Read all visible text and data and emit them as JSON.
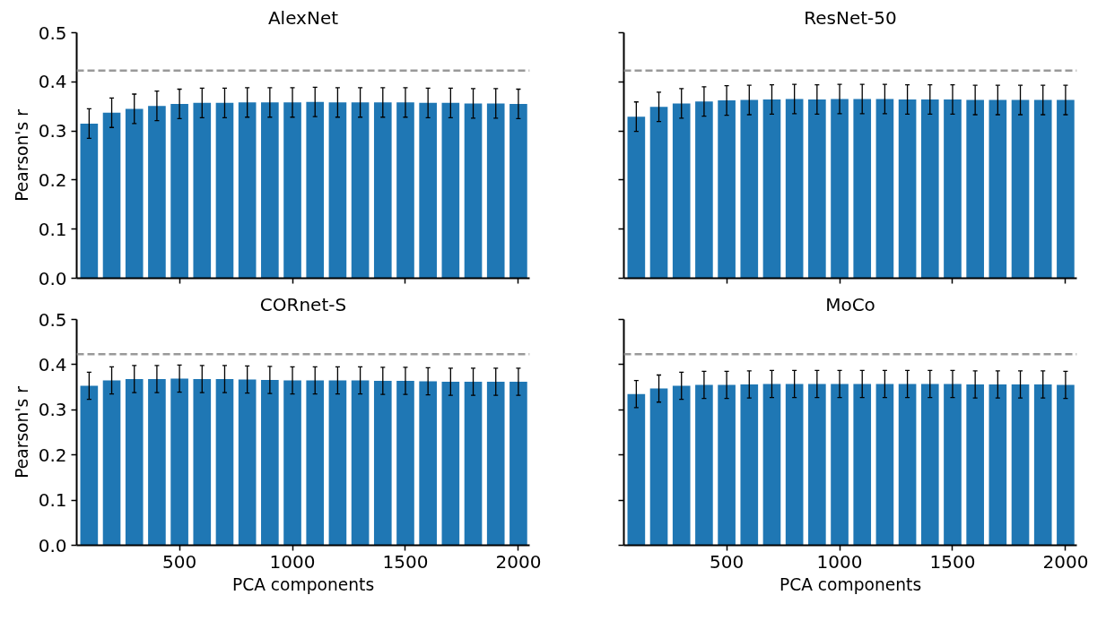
{
  "chart_data": [
    {
      "type": "bar",
      "title": "AlexNet",
      "ylabel": "Pearson's r",
      "color": "#1f77b4",
      "x": [
        100,
        200,
        300,
        400,
        500,
        600,
        700,
        800,
        900,
        1000,
        1100,
        1200,
        1300,
        1400,
        1500,
        1600,
        1700,
        1800,
        1900,
        2000
      ],
      "values": [
        0.315,
        0.337,
        0.345,
        0.351,
        0.355,
        0.357,
        0.357,
        0.358,
        0.358,
        0.358,
        0.359,
        0.358,
        0.358,
        0.358,
        0.358,
        0.357,
        0.357,
        0.356,
        0.356,
        0.355
      ],
      "errors": [
        0.03,
        0.03,
        0.03,
        0.03,
        0.03,
        0.03,
        0.03,
        0.03,
        0.03,
        0.03,
        0.03,
        0.03,
        0.03,
        0.03,
        0.03,
        0.03,
        0.03,
        0.03,
        0.03,
        0.03
      ],
      "xlim": [
        45,
        2050
      ],
      "xticks": [
        500,
        1000,
        1500,
        2000
      ],
      "ylim": [
        0,
        0.5
      ],
      "yticks": [
        {
          "value": 0,
          "label": "0.0"
        },
        0.1,
        0.2,
        0.3,
        0.4,
        0.5
      ],
      "tick_labels": "y",
      "grid": false,
      "ref_lines": [
        {
          "axis": "y",
          "value": 0.423,
          "color": "#999999",
          "line_style": "dashed"
        }
      ]
    },
    {
      "type": "bar",
      "title": "ResNet-50",
      "color": "#1f77b4",
      "x": [
        100,
        200,
        300,
        400,
        500,
        600,
        700,
        800,
        900,
        1000,
        1100,
        1200,
        1300,
        1400,
        1500,
        1600,
        1700,
        1800,
        1900,
        2000
      ],
      "values": [
        0.329,
        0.349,
        0.356,
        0.36,
        0.362,
        0.363,
        0.364,
        0.365,
        0.364,
        0.365,
        0.365,
        0.365,
        0.364,
        0.364,
        0.364,
        0.363,
        0.363,
        0.363,
        0.363,
        0.363
      ],
      "errors": [
        0.03,
        0.03,
        0.03,
        0.03,
        0.03,
        0.03,
        0.03,
        0.03,
        0.03,
        0.03,
        0.03,
        0.03,
        0.03,
        0.03,
        0.03,
        0.03,
        0.03,
        0.03,
        0.03,
        0.03
      ],
      "xlim": [
        45,
        2050
      ],
      "xticks": [
        500,
        1000,
        1500,
        2000
      ],
      "ylim": [
        0,
        0.5
      ],
      "yticks": [
        0.0,
        0.1,
        0.2,
        0.3,
        0.4,
        0.5
      ],
      "tick_labels": false,
      "grid": false,
      "ref_lines": [
        {
          "axis": "y",
          "value": 0.423,
          "color": "#999999",
          "line_style": "dashed"
        }
      ]
    },
    {
      "type": "bar",
      "title": "CORnet-S",
      "xlabel": "PCA components",
      "ylabel": "Pearson's r",
      "color": "#1f77b4",
      "x": [
        100,
        200,
        300,
        400,
        500,
        600,
        700,
        800,
        900,
        1000,
        1100,
        1200,
        1300,
        1400,
        1500,
        1600,
        1700,
        1800,
        1900,
        2000
      ],
      "values": [
        0.353,
        0.365,
        0.368,
        0.368,
        0.369,
        0.368,
        0.368,
        0.367,
        0.366,
        0.365,
        0.365,
        0.365,
        0.365,
        0.364,
        0.364,
        0.363,
        0.362,
        0.362,
        0.362,
        0.362
      ],
      "errors": [
        0.03,
        0.03,
        0.03,
        0.03,
        0.03,
        0.03,
        0.03,
        0.03,
        0.03,
        0.03,
        0.03,
        0.03,
        0.03,
        0.03,
        0.03,
        0.03,
        0.03,
        0.03,
        0.03,
        0.03
      ],
      "xlim": [
        45,
        2050
      ],
      "xticks": [
        500,
        1000,
        1500,
        2000
      ],
      "ylim": [
        0,
        0.5
      ],
      "yticks": [
        {
          "value": 0,
          "label": "0.0"
        },
        0.1,
        0.2,
        0.3,
        0.4,
        0.5
      ],
      "grid": false,
      "ref_lines": [
        {
          "axis": "y",
          "value": 0.423,
          "color": "#999999",
          "line_style": "dashed"
        }
      ]
    },
    {
      "type": "bar",
      "title": "MoCo",
      "xlabel": "PCA components",
      "color": "#1f77b4",
      "x": [
        100,
        200,
        300,
        400,
        500,
        600,
        700,
        800,
        900,
        1000,
        1100,
        1200,
        1300,
        1400,
        1500,
        1600,
        1700,
        1800,
        1900,
        2000
      ],
      "values": [
        0.335,
        0.347,
        0.353,
        0.355,
        0.355,
        0.356,
        0.357,
        0.357,
        0.357,
        0.357,
        0.357,
        0.357,
        0.357,
        0.357,
        0.357,
        0.356,
        0.356,
        0.356,
        0.356,
        0.355
      ],
      "errors": [
        0.03,
        0.03,
        0.03,
        0.03,
        0.03,
        0.03,
        0.03,
        0.03,
        0.03,
        0.03,
        0.03,
        0.03,
        0.03,
        0.03,
        0.03,
        0.03,
        0.03,
        0.03,
        0.03,
        0.03
      ],
      "xlim": [
        45,
        2050
      ],
      "xticks": [
        500,
        1000,
        1500,
        2000
      ],
      "ylim": [
        0,
        0.5
      ],
      "yticks": [
        0.0,
        0.1,
        0.2,
        0.3,
        0.4,
        0.5
      ],
      "tick_labels": "x",
      "grid": false,
      "ref_lines": [
        {
          "axis": "y",
          "value": 0.423,
          "color": "#999999",
          "line_style": "dashed"
        }
      ]
    }
  ]
}
